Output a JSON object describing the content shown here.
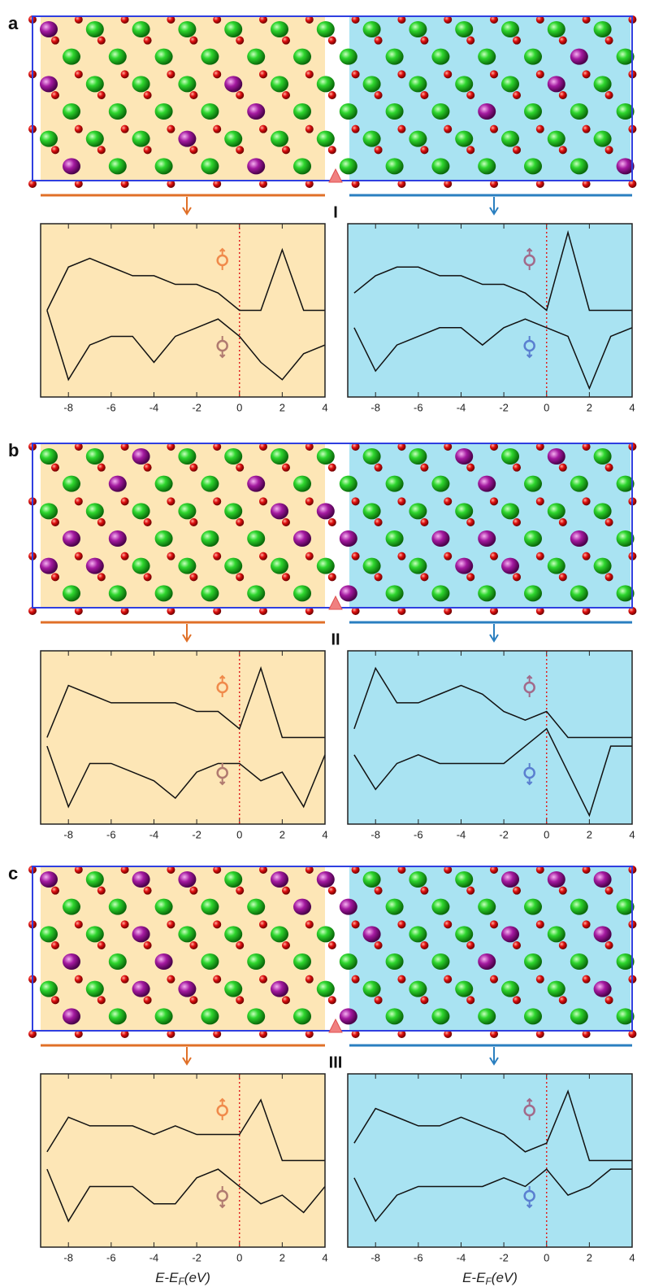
{
  "x_label_parts": [
    "E-E",
    "F",
    "(eV)"
  ],
  "panels": [
    {
      "label": "a",
      "interface": "I",
      "charts": [
        {
          "type": "line",
          "background": "#fde6b6",
          "xlim": [
            -9.3,
            4
          ],
          "xticks": [
            -8,
            -6,
            -4,
            -2,
            0,
            2,
            4
          ],
          "ylim": [
            -10,
            10
          ],
          "fermi_level": 0,
          "spin_up_color": "#f08a4b",
          "spin_down_color": "#b07a70",
          "x": [
            -9,
            -8,
            -7,
            -6,
            -5,
            -4,
            -3,
            -2,
            -1,
            0,
            1,
            2,
            3,
            4
          ],
          "series": [
            {
              "color": "#111",
              "values": [
                0,
                5,
                6,
                5,
                4,
                4,
                3,
                3,
                2,
                0,
                0,
                7,
                0,
                0
              ]
            },
            {
              "color": "#111",
              "values": [
                0,
                -8,
                -4,
                -3,
                -3,
                -6,
                -3,
                -2,
                -1,
                -3,
                -6,
                -8,
                -5,
                -4
              ]
            }
          ]
        },
        {
          "type": "line",
          "background": "#a9e3f2",
          "xlim": [
            -9.3,
            4
          ],
          "xticks": [
            -8,
            -6,
            -4,
            -2,
            0,
            2,
            4
          ],
          "ylim": [
            -10,
            10
          ],
          "fermi_level": 0,
          "spin_up_color": "#a26a8a",
          "spin_down_color": "#5a7fd0",
          "x": [
            -9,
            -8,
            -7,
            -6,
            -5,
            -4,
            -3,
            -2,
            -1,
            0,
            1,
            2,
            3,
            4
          ],
          "series": [
            {
              "color": "#111",
              "values": [
                2,
                4,
                5,
                5,
                4,
                4,
                3,
                3,
                2,
                0,
                9,
                0,
                0,
                0
              ]
            },
            {
              "color": "#111",
              "values": [
                -2,
                -7,
                -4,
                -3,
                -2,
                -2,
                -4,
                -2,
                -1,
                -2,
                -3,
                -9,
                -3,
                -2
              ]
            }
          ]
        }
      ]
    },
    {
      "label": "b",
      "interface": "II",
      "charts": [
        {
          "type": "line",
          "background": "#fde6b6",
          "xlim": [
            -9.3,
            4
          ],
          "xticks": [
            -8,
            -6,
            -4,
            -2,
            0,
            2,
            4
          ],
          "ylim": [
            -10,
            10
          ],
          "fermi_level": 0,
          "spin_up_color": "#f08a4b",
          "spin_down_color": "#b07a70",
          "x": [
            -9,
            -8,
            -7,
            -6,
            -5,
            -4,
            -3,
            -2,
            -1,
            0,
            1,
            2,
            3,
            4
          ],
          "series": [
            {
              "color": "#111",
              "values": [
                0,
                6,
                5,
                4,
                4,
                4,
                4,
                3,
                3,
                1,
                8,
                0,
                0,
                0
              ]
            },
            {
              "color": "#111",
              "values": [
                -1,
                -8,
                -3,
                -3,
                -4,
                -5,
                -7,
                -4,
                -3,
                -3,
                -5,
                -4,
                -8,
                -2
              ]
            }
          ]
        },
        {
          "type": "line",
          "background": "#a9e3f2",
          "xlim": [
            -9.3,
            4
          ],
          "xticks": [
            -8,
            -6,
            -4,
            -2,
            0,
            2,
            4
          ],
          "ylim": [
            -10,
            10
          ],
          "fermi_level": 0,
          "spin_up_color": "#a26a8a",
          "spin_down_color": "#5a7fd0",
          "x": [
            -9,
            -8,
            -7,
            -6,
            -5,
            -4,
            -3,
            -2,
            -1,
            0,
            1,
            2,
            3,
            4
          ],
          "series": [
            {
              "color": "#111",
              "values": [
                1,
                8,
                4,
                4,
                5,
                6,
                5,
                3,
                2,
                3,
                0,
                0,
                0,
                0
              ]
            },
            {
              "color": "#111",
              "values": [
                -2,
                -6,
                -3,
                -2,
                -3,
                -3,
                -3,
                -3,
                -1,
                1,
                -4,
                -9,
                -1,
                -1
              ]
            }
          ]
        }
      ]
    },
    {
      "label": "c",
      "interface": "III",
      "charts": [
        {
          "type": "line",
          "background": "#fde6b6",
          "xlim": [
            -9.3,
            4
          ],
          "xticks": [
            -8,
            -6,
            -4,
            -2,
            0,
            2,
            4
          ],
          "ylim": [
            -10,
            10
          ],
          "fermi_level": 0,
          "spin_up_color": "#f08a4b",
          "spin_down_color": "#b07a70",
          "x": [
            -9,
            -8,
            -7,
            -6,
            -5,
            -4,
            -3,
            -2,
            -1,
            0,
            1,
            2,
            3,
            4
          ],
          "series": [
            {
              "color": "#111",
              "values": [
                1,
                5,
                4,
                4,
                4,
                3,
                4,
                3,
                3,
                3,
                7,
                0,
                0,
                0
              ]
            },
            {
              "color": "#111",
              "values": [
                -1,
                -7,
                -3,
                -3,
                -3,
                -5,
                -5,
                -2,
                -1,
                -3,
                -5,
                -4,
                -6,
                -3
              ]
            }
          ]
        },
        {
          "type": "line",
          "background": "#a9e3f2",
          "xlim": [
            -9.3,
            4
          ],
          "xticks": [
            -8,
            -6,
            -4,
            -2,
            0,
            2,
            4
          ],
          "ylim": [
            -10,
            10
          ],
          "fermi_level": 0,
          "spin_up_color": "#a26a8a",
          "spin_down_color": "#5a7fd0",
          "x": [
            -9,
            -8,
            -7,
            -6,
            -5,
            -4,
            -3,
            -2,
            -1,
            0,
            1,
            2,
            3,
            4
          ],
          "series": [
            {
              "color": "#111",
              "values": [
                2,
                6,
                5,
                4,
                4,
                5,
                4,
                3,
                1,
                2,
                8,
                0,
                0,
                0
              ]
            },
            {
              "color": "#111",
              "values": [
                -2,
                -7,
                -4,
                -3,
                -3,
                -3,
                -3,
                -2,
                -3,
                -1,
                -4,
                -3,
                -1,
                -1
              ]
            }
          ]
        }
      ]
    }
  ]
}
